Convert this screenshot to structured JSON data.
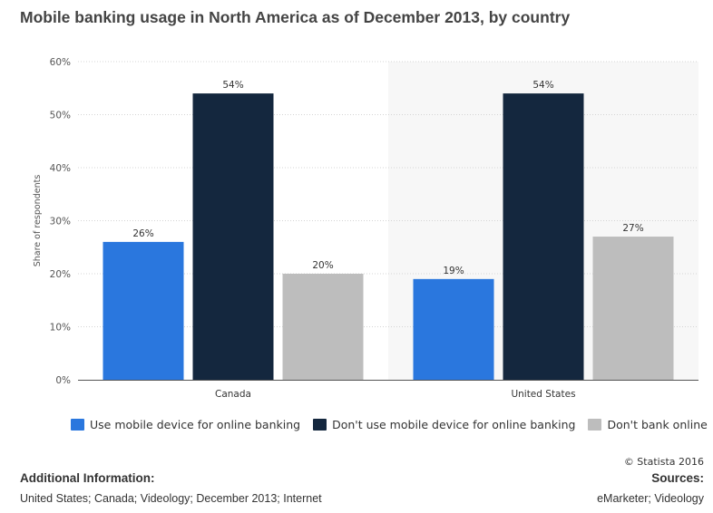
{
  "title": "Mobile banking usage in North America as of December 2013, by country",
  "chart_data": {
    "type": "bar",
    "categories": [
      "Canada",
      "United States"
    ],
    "series": [
      {
        "name": "Use mobile device for online banking",
        "values": [
          26,
          19
        ],
        "labels": [
          "26%",
          "19%"
        ],
        "color": "#2a77de"
      },
      {
        "name": "Don't use mobile device for online banking",
        "values": [
          54,
          54
        ],
        "labels": [
          "54%",
          "54%"
        ],
        "color": "#14273e"
      },
      {
        "name": "Don't bank online",
        "values": [
          20,
          27
        ],
        "labels": [
          "20%",
          "27%"
        ],
        "color": "#bdbdbd"
      }
    ],
    "ylabel": "Share of respondents",
    "ylim": [
      0,
      60
    ],
    "yticks": [
      0,
      10,
      20,
      30,
      40,
      50,
      60
    ],
    "ytick_labels": [
      "0%",
      "10%",
      "20%",
      "30%",
      "40%",
      "50%",
      "60%"
    ],
    "grid": true,
    "legend_position": "bottom",
    "highlighted_category_background": "#f7f7f7"
  },
  "legend": {
    "items": [
      {
        "label": "Use mobile device for online banking",
        "color": "#2a77de"
      },
      {
        "label": "Don't use mobile device for online banking",
        "color": "#14273e"
      },
      {
        "label": "Don't bank online",
        "color": "#bdbdbd"
      }
    ]
  },
  "footer": {
    "copyright": "© Statista 2016",
    "additional_info_heading": "Additional Information:",
    "additional_info_text": "United States; Canada; Videology; December 2013; Internet",
    "sources_heading": "Sources:",
    "sources_text": "eMarketer; Videology"
  }
}
